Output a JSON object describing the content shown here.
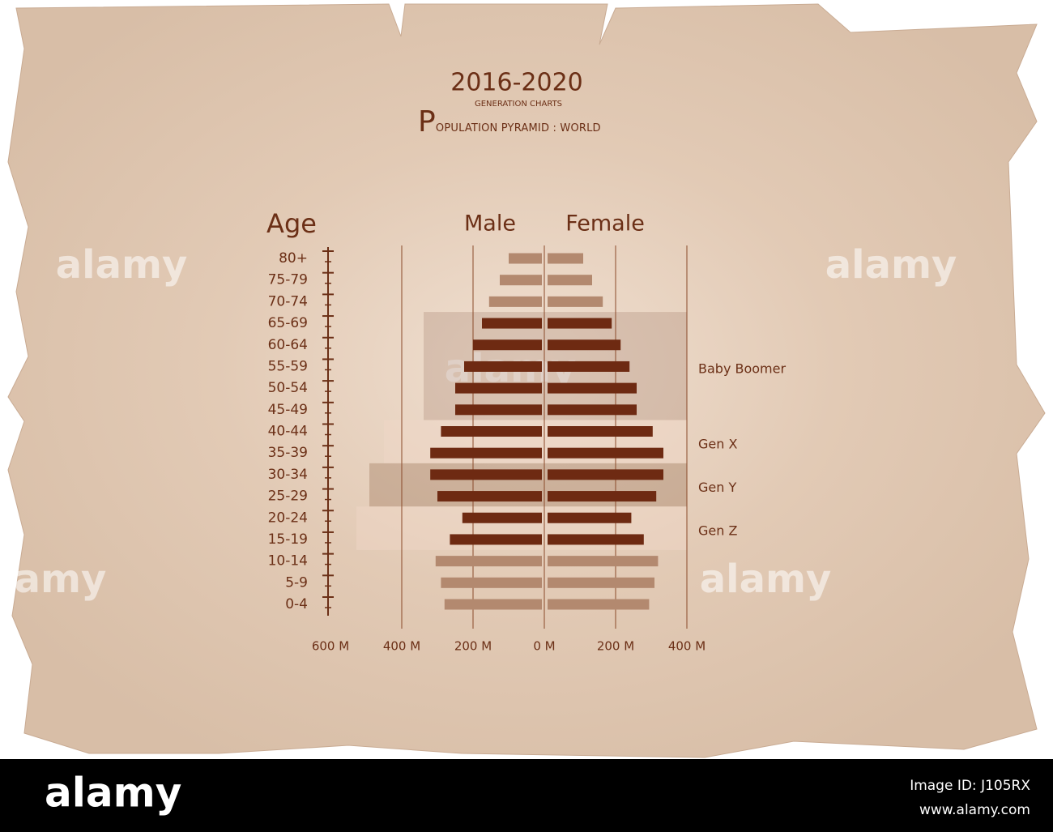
{
  "chart_data": {
    "type": "pyramid",
    "title": "2016-2020",
    "subtitle": "GENERATION CHARTS",
    "caption": "POPULATION PYRAMID : WORLD",
    "y_label": "Age",
    "categories": [
      "80+",
      "75-79",
      "70-74",
      "65-69",
      "60-64",
      "55-59",
      "50-54",
      "45-49",
      "40-44",
      "35-39",
      "30-34",
      "25-29",
      "20-24",
      "15-19",
      "10-14",
      "5-9",
      "0-4"
    ],
    "series": [
      {
        "name": "Male",
        "side": "left",
        "values": [
          100,
          125,
          155,
          175,
          200,
          225,
          250,
          250,
          290,
          320,
          320,
          300,
          230,
          265,
          305,
          290,
          280
        ]
      },
      {
        "name": "Female",
        "side": "right",
        "values": [
          100,
          125,
          155,
          180,
          205,
          230,
          250,
          250,
          295,
          325,
          325,
          305,
          235,
          270,
          310,
          300,
          285
        ]
      }
    ],
    "bar_color": "#b3896f",
    "highlight_color": "#6e2a12",
    "generations": [
      {
        "name": "Baby Boomer",
        "from": "65-69",
        "to": "45-49",
        "color": "rgba(140,100,80,0.22)"
      },
      {
        "name": "Gen X",
        "from": "40-44",
        "to": "35-39",
        "color": "rgba(240,215,200,0.45)"
      },
      {
        "name": "Gen Y",
        "from": "30-34",
        "to": "25-29",
        "color": "rgba(140,95,65,0.3)"
      },
      {
        "name": "Gen Z",
        "from": "20-24",
        "to": "15-19",
        "color": "rgba(240,215,200,0.45)"
      }
    ],
    "xlim": [
      -600,
      400
    ],
    "xticks": [
      {
        "value": -600,
        "label": "600 M"
      },
      {
        "value": -400,
        "label": "400 M"
      },
      {
        "value": -200,
        "label": "200 M"
      },
      {
        "value": 0,
        "label": "0 M"
      },
      {
        "value": 200,
        "label": "200 M"
      },
      {
        "value": 400,
        "label": "400 M"
      }
    ],
    "grid": true,
    "watermark": "alamy",
    "image_id": "Image ID: J105RX",
    "site": "www.alamy.com"
  }
}
